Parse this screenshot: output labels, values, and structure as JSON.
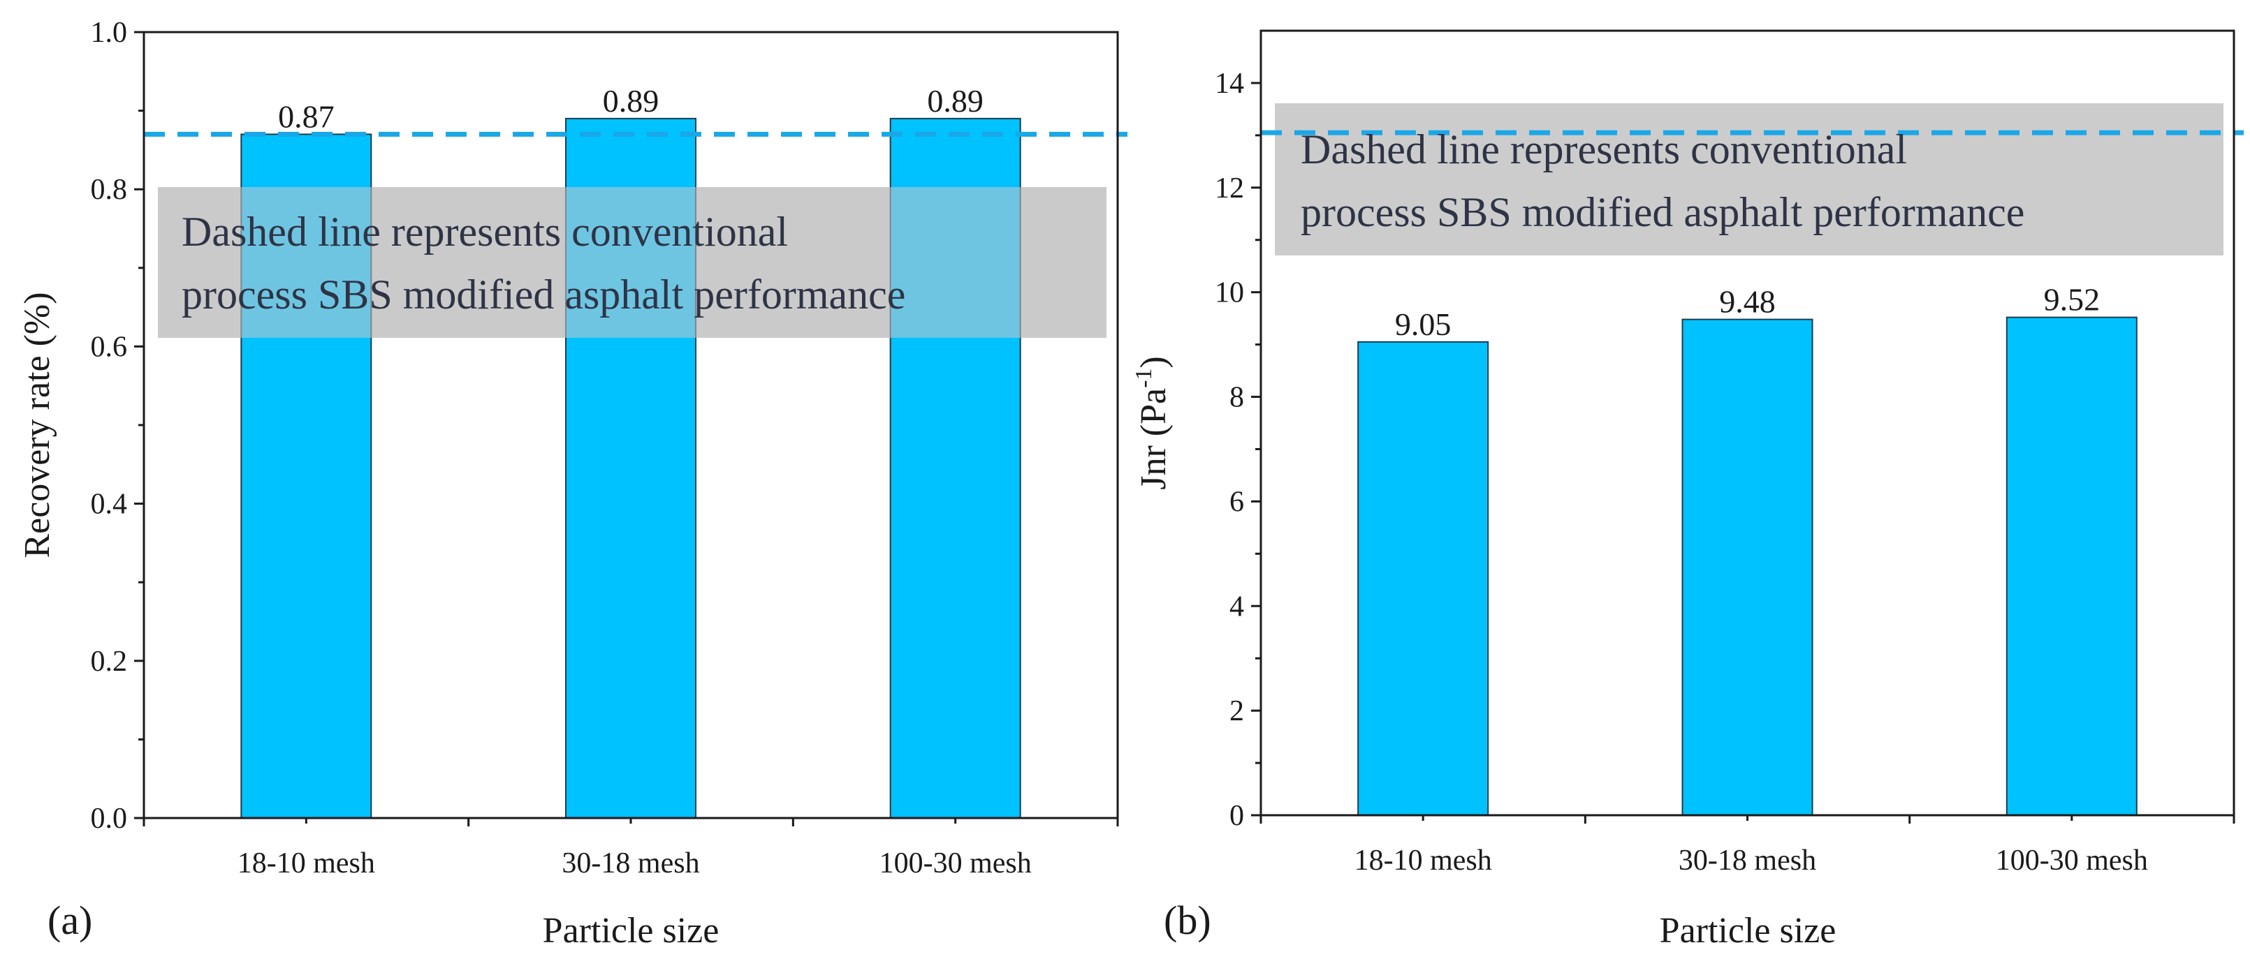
{
  "colors": {
    "bar_fill": "#00C2FF",
    "bar_stroke": "#1f3b4d",
    "dashed_line": "#1aa7e8",
    "note_box": "#c8c8c8",
    "axis": "#1a1a1a"
  },
  "chart_data": [
    {
      "type": "bar",
      "panel": "(a)",
      "categories": [
        "18-10 mesh",
        "30-18 mesh",
        "100-30 mesh"
      ],
      "values": [
        0.87,
        0.89,
        0.89
      ],
      "value_labels": [
        "0.87",
        "0.89",
        "0.89"
      ],
      "xlabel": "Particle size",
      "ylabel": "Recovery rate (%)",
      "ylim": [
        0.0,
        1.0
      ],
      "yticks": [
        0.0,
        0.2,
        0.4,
        0.6,
        0.8,
        1.0
      ],
      "ytick_labels": [
        "0.0",
        "0.2",
        "0.4",
        "0.6",
        "0.8",
        "1.0"
      ],
      "reference_line": {
        "value": 0.87,
        "style": "dashed"
      },
      "annotation_lines": [
        "Dashed line represents conventional",
        "process SBS modified asphalt performance"
      ]
    },
    {
      "type": "bar",
      "panel": "(b)",
      "categories": [
        "18-10 mesh",
        "30-18 mesh",
        "100-30 mesh"
      ],
      "values": [
        9.05,
        9.48,
        9.52
      ],
      "value_labels": [
        "9.05",
        "9.48",
        "9.52"
      ],
      "xlabel": "Particle size",
      "ylabel_main": "Jnr (Pa",
      "ylabel_sup": "-1",
      "ylabel_end": ")",
      "ylim": [
        0,
        15
      ],
      "yticks": [
        0,
        2,
        4,
        6,
        8,
        10,
        12,
        14
      ],
      "ytick_labels": [
        "0",
        "2",
        "4",
        "6",
        "8",
        "10",
        "12",
        "14"
      ],
      "reference_line": {
        "value": 13.05,
        "style": "dashed"
      },
      "annotation_lines": [
        "Dashed line represents conventional",
        "process SBS modified asphalt performance"
      ]
    }
  ]
}
